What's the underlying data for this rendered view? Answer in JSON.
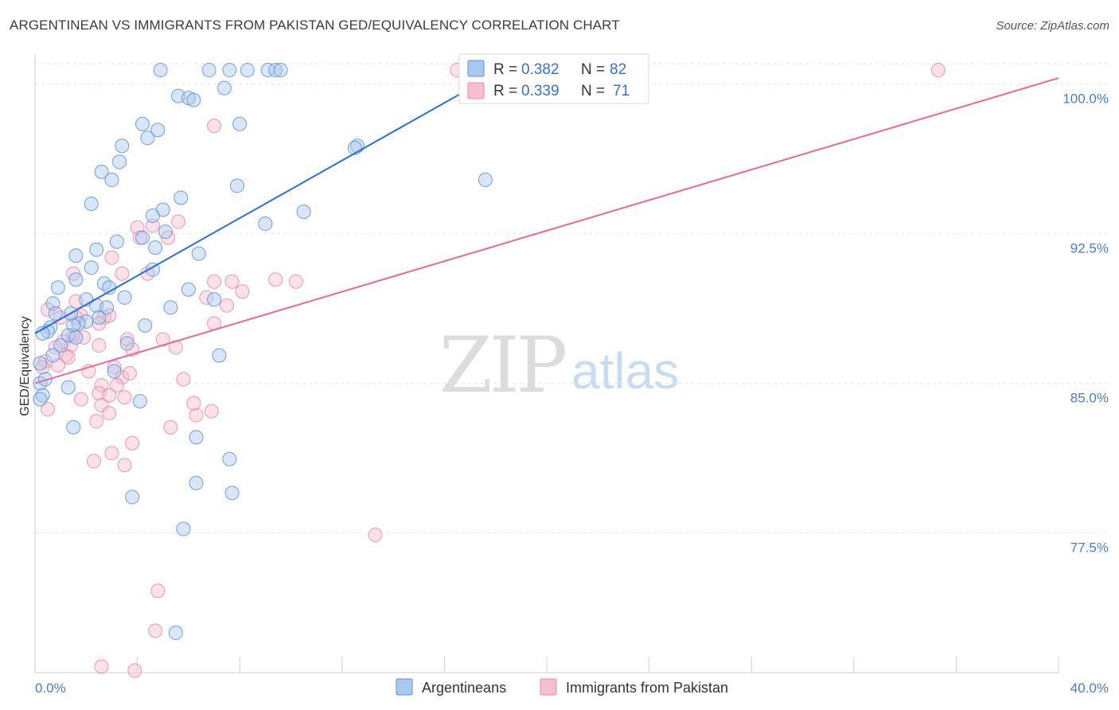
{
  "title": "ARGENTINEAN VS IMMIGRANTS FROM PAKISTAN GED/EQUIVALENCY CORRELATION CHART",
  "source": "Source: ZipAtlas.com",
  "watermark": {
    "zip": "ZIP",
    "atlas": "atlas"
  },
  "colors": {
    "blue_fill": "#a9c8ef",
    "blue_stroke": "#5b8fd6",
    "blue_line": "#2a6fd0",
    "pink_fill": "#f6bfd0",
    "pink_stroke": "#e785a7",
    "pink_line": "#e36b97",
    "grid": "#e6e6e6",
    "axis_label": "#4a7cc9"
  },
  "legend": {
    "rows": [
      {
        "r_label": "R = ",
        "r_value": "0.382",
        "n_label": "N = ",
        "n_value": "82"
      },
      {
        "r_label": "R = ",
        "r_value": "0.339",
        "n_label": "N = ",
        "n_value": "71"
      }
    ]
  },
  "bottom_legend": [
    "Argentineans",
    "Immigrants from Pakistan"
  ],
  "chart_data": {
    "type": "scatter",
    "title": "ARGENTINEAN VS IMMIGRANTS FROM PAKISTAN GED/EQUIVALENCY CORRELATION CHART",
    "xlabel": "",
    "ylabel": "GED/Equivalency",
    "xlim": [
      0,
      40
    ],
    "ylim": [
      70.5,
      101.5
    ],
    "x_tick_labels": [
      "0.0%",
      "40.0%"
    ],
    "y_ticks": [
      77.5,
      85.0,
      92.5,
      100.0
    ],
    "y_tick_labels": [
      "77.5%",
      "85.0%",
      "92.5%",
      "100.0%"
    ],
    "grid": true,
    "series": [
      {
        "name": "Argentineans",
        "r": 0.382,
        "n": 82,
        "trend": {
          "x0": 0.0,
          "y0": 87.5,
          "x1": 18.0,
          "y1": 100.5
        },
        "points": [
          [
            4.9,
            100.7
          ],
          [
            6.8,
            100.7
          ],
          [
            7.6,
            100.7
          ],
          [
            8.3,
            100.7
          ],
          [
            9.1,
            100.7
          ],
          [
            9.4,
            100.7
          ],
          [
            9.6,
            100.7
          ],
          [
            7.4,
            99.8
          ],
          [
            5.6,
            99.4
          ],
          [
            6.0,
            99.3
          ],
          [
            6.2,
            99.2
          ],
          [
            4.2,
            98.0
          ],
          [
            8.0,
            98.0
          ],
          [
            4.8,
            97.7
          ],
          [
            4.4,
            97.3
          ],
          [
            3.4,
            96.9
          ],
          [
            12.6,
            96.9
          ],
          [
            3.3,
            96.1
          ],
          [
            2.6,
            95.6
          ],
          [
            3.0,
            95.2
          ],
          [
            17.6,
            95.2
          ],
          [
            7.9,
            94.9
          ],
          [
            5.7,
            94.3
          ],
          [
            2.2,
            94.0
          ],
          [
            5.0,
            93.7
          ],
          [
            10.5,
            93.6
          ],
          [
            4.6,
            93.4
          ],
          [
            9.0,
            93.0
          ],
          [
            5.1,
            92.6
          ],
          [
            4.2,
            92.3
          ],
          [
            3.2,
            92.1
          ],
          [
            2.4,
            91.7
          ],
          [
            1.6,
            91.4
          ],
          [
            6.4,
            91.5
          ],
          [
            2.2,
            90.8
          ],
          [
            4.6,
            90.7
          ],
          [
            1.6,
            90.2
          ],
          [
            2.7,
            90.0
          ],
          [
            0.9,
            89.8
          ],
          [
            2.9,
            89.8
          ],
          [
            6.0,
            89.7
          ],
          [
            3.5,
            89.3
          ],
          [
            7.0,
            89.2
          ],
          [
            2.0,
            89.2
          ],
          [
            0.7,
            89.0
          ],
          [
            2.4,
            88.9
          ],
          [
            5.3,
            88.8
          ],
          [
            2.8,
            88.8
          ],
          [
            0.8,
            88.5
          ],
          [
            1.4,
            88.5
          ],
          [
            2.5,
            88.3
          ],
          [
            2.0,
            88.1
          ],
          [
            1.7,
            88.0
          ],
          [
            1.5,
            87.9
          ],
          [
            0.6,
            87.8
          ],
          [
            4.3,
            87.9
          ],
          [
            0.5,
            87.6
          ],
          [
            0.3,
            87.5
          ],
          [
            1.3,
            87.4
          ],
          [
            1.6,
            87.3
          ],
          [
            3.6,
            87.0
          ],
          [
            1.0,
            86.9
          ],
          [
            0.7,
            86.4
          ],
          [
            7.2,
            86.4
          ],
          [
            0.2,
            86.0
          ],
          [
            3.1,
            85.6
          ],
          [
            0.2,
            85.0
          ],
          [
            1.3,
            84.8
          ],
          [
            0.3,
            84.4
          ],
          [
            0.2,
            84.2
          ],
          [
            4.1,
            84.1
          ],
          [
            1.5,
            82.8
          ],
          [
            6.3,
            82.3
          ],
          [
            7.6,
            81.2
          ],
          [
            6.3,
            80.0
          ],
          [
            7.7,
            79.5
          ],
          [
            3.8,
            79.3
          ],
          [
            5.8,
            77.7
          ],
          [
            5.5,
            72.5
          ],
          [
            0.4,
            85.2
          ],
          [
            12.5,
            96.8
          ],
          [
            4.7,
            91.8
          ]
        ]
      },
      {
        "name": "Immigrants from Pakistan",
        "r": 0.339,
        "n": 71,
        "trend": {
          "x0": 0.0,
          "y0": 85.0,
          "x1": 40.0,
          "y1": 100.3
        },
        "points": [
          [
            16.5,
            100.7
          ],
          [
            35.3,
            100.7
          ],
          [
            7.0,
            97.9
          ],
          [
            5.6,
            93.1
          ],
          [
            4.6,
            92.9
          ],
          [
            4.0,
            92.8
          ],
          [
            4.1,
            92.3
          ],
          [
            3.0,
            91.3
          ],
          [
            1.5,
            90.5
          ],
          [
            4.4,
            90.5
          ],
          [
            3.4,
            90.5
          ],
          [
            7.0,
            90.1
          ],
          [
            7.7,
            90.1
          ],
          [
            9.4,
            90.2
          ],
          [
            10.2,
            90.1
          ],
          [
            6.7,
            89.3
          ],
          [
            1.6,
            89.1
          ],
          [
            7.5,
            88.9
          ],
          [
            0.5,
            88.7
          ],
          [
            2.7,
            88.3
          ],
          [
            1.8,
            88.4
          ],
          [
            1.0,
            88.3
          ],
          [
            2.5,
            88.0
          ],
          [
            7.0,
            88.0
          ],
          [
            1.5,
            87.4
          ],
          [
            1.9,
            87.3
          ],
          [
            5.0,
            87.2
          ],
          [
            3.6,
            87.2
          ],
          [
            1.1,
            87.1
          ],
          [
            1.4,
            86.9
          ],
          [
            2.5,
            86.9
          ],
          [
            5.5,
            86.8
          ],
          [
            3.8,
            86.7
          ],
          [
            1.2,
            86.4
          ],
          [
            0.4,
            86.1
          ],
          [
            0.3,
            85.8
          ],
          [
            3.1,
            85.8
          ],
          [
            2.1,
            85.6
          ],
          [
            3.4,
            85.3
          ],
          [
            5.8,
            85.2
          ],
          [
            2.6,
            84.9
          ],
          [
            3.2,
            84.9
          ],
          [
            2.5,
            84.5
          ],
          [
            2.9,
            84.4
          ],
          [
            3.5,
            84.3
          ],
          [
            1.8,
            84.2
          ],
          [
            2.6,
            83.9
          ],
          [
            0.5,
            83.7
          ],
          [
            6.9,
            83.6
          ],
          [
            6.3,
            83.4
          ],
          [
            2.9,
            83.5
          ],
          [
            2.4,
            83.1
          ],
          [
            5.3,
            82.8
          ],
          [
            3.8,
            82.0
          ],
          [
            3.0,
            81.5
          ],
          [
            2.3,
            81.1
          ],
          [
            3.5,
            80.9
          ],
          [
            13.3,
            77.4
          ],
          [
            4.8,
            74.6
          ],
          [
            4.7,
            72.6
          ],
          [
            2.6,
            70.8
          ],
          [
            3.9,
            70.6
          ],
          [
            0.9,
            85.9
          ],
          [
            1.6,
            88.3
          ],
          [
            0.8,
            86.8
          ],
          [
            5.2,
            92.3
          ],
          [
            2.9,
            88.4
          ],
          [
            1.3,
            86.3
          ],
          [
            6.2,
            84.0
          ],
          [
            8.1,
            89.6
          ],
          [
            3.7,
            85.5
          ]
        ]
      }
    ]
  }
}
